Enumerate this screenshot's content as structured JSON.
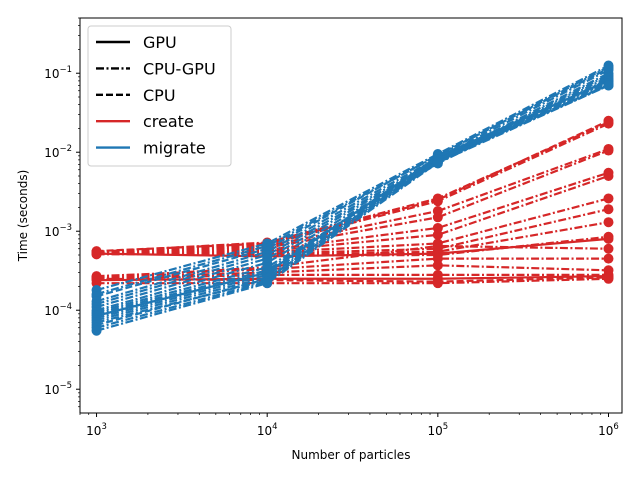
{
  "chart_data": {
    "type": "line",
    "title": "",
    "xlabel": "Number of particles",
    "ylabel": "Time (seconds)",
    "xscale": "log",
    "yscale": "log",
    "xlim": [
      800,
      1200000
    ],
    "ylim": [
      5e-06,
      0.5
    ],
    "grid": false,
    "legend_placement": "top-left",
    "x": [
      1000,
      10000,
      100000,
      1000000
    ],
    "x_ticks": [
      {
        "value": 1000,
        "base": "10",
        "exp": "3"
      },
      {
        "value": 10000,
        "base": "10",
        "exp": "4"
      },
      {
        "value": 100000,
        "base": "10",
        "exp": "5"
      },
      {
        "value": 1000000,
        "base": "10",
        "exp": "6"
      }
    ],
    "y_ticks": [
      {
        "value": 1e-05,
        "base": "10",
        "exp": "−5"
      },
      {
        "value": 0.0001,
        "base": "10",
        "exp": "−4"
      },
      {
        "value": 0.001,
        "base": "10",
        "exp": "−3"
      },
      {
        "value": 0.01,
        "base": "10",
        "exp": "−2"
      },
      {
        "value": 0.1,
        "base": "10",
        "exp": "−1"
      }
    ],
    "colors": {
      "create": "#d62728",
      "migrate": "#1f77b4"
    },
    "legend": {
      "styles": [
        {
          "label": "GPU",
          "dash": "solid"
        },
        {
          "label": "CPU-GPU",
          "dash": "dashdot"
        },
        {
          "label": "CPU",
          "dash": "dashed"
        }
      ],
      "colors": [
        {
          "label": "create",
          "color": "create"
        },
        {
          "label": "migrate",
          "color": "migrate"
        }
      ]
    },
    "series": [
      {
        "group": "create",
        "style": "dashdot",
        "values": [
          0.00055,
          0.00072,
          0.0026,
          0.024
        ]
      },
      {
        "group": "create",
        "style": "dashdot",
        "values": [
          0.00054,
          0.00068,
          0.0024,
          0.023
        ]
      },
      {
        "group": "create",
        "style": "dashed",
        "values": [
          0.00056,
          0.0007,
          0.0025,
          0.025
        ]
      },
      {
        "group": "create",
        "style": "dashdot",
        "values": [
          0.00053,
          0.00065,
          0.0018,
          0.011
        ]
      },
      {
        "group": "create",
        "style": "dashdot",
        "values": [
          0.00052,
          0.00062,
          0.0015,
          0.0105
        ]
      },
      {
        "group": "create",
        "style": "dashdot",
        "values": [
          0.00054,
          0.00058,
          0.0011,
          0.0055
        ]
      },
      {
        "group": "create",
        "style": "dashdot",
        "values": [
          0.00053,
          0.00056,
          0.0009,
          0.005
        ]
      },
      {
        "group": "create",
        "style": "dashdot",
        "values": [
          0.00052,
          0.00054,
          0.0007,
          0.0026
        ]
      },
      {
        "group": "create",
        "style": "dashdot",
        "values": [
          0.00051,
          0.00052,
          0.0006,
          0.0019
        ]
      },
      {
        "group": "create",
        "style": "dashdot",
        "values": [
          0.00055,
          0.0005,
          0.00055,
          0.0013
        ]
      },
      {
        "group": "create",
        "style": "dashdot",
        "values": [
          0.00053,
          0.00049,
          0.0005,
          0.00085
        ]
      },
      {
        "group": "create",
        "style": "solid",
        "values": [
          0.00052,
          0.00048,
          0.00052,
          0.0008
        ]
      },
      {
        "group": "create",
        "style": "dashdot",
        "values": [
          0.00026,
          0.00035,
          0.00065,
          0.0006
        ]
      },
      {
        "group": "create",
        "style": "dashdot",
        "values": [
          0.00027,
          0.00033,
          0.00045,
          0.00045
        ]
      },
      {
        "group": "create",
        "style": "dashdot",
        "values": [
          0.00026,
          0.0003,
          0.00037,
          0.00032
        ]
      },
      {
        "group": "create",
        "style": "dashdot",
        "values": [
          0.00025,
          0.00028,
          0.00028,
          0.00028
        ]
      },
      {
        "group": "create",
        "style": "solid",
        "values": [
          0.00024,
          0.00025,
          0.00025,
          0.00027
        ]
      },
      {
        "group": "create",
        "style": "dashed",
        "values": [
          0.00025,
          0.00024,
          0.00023,
          0.00026
        ]
      },
      {
        "group": "create",
        "style": "dashdot",
        "values": [
          0.00022,
          0.00022,
          0.00022,
          0.00025
        ]
      },
      {
        "group": "migrate",
        "style": "dashdot",
        "values": [
          0.00018,
          0.0007,
          0.0095,
          0.125
        ]
      },
      {
        "group": "migrate",
        "style": "dashdot",
        "values": [
          0.00016,
          0.00065,
          0.009,
          0.12
        ]
      },
      {
        "group": "migrate",
        "style": "dashed",
        "values": [
          0.00015,
          0.0006,
          0.0092,
          0.115
        ]
      },
      {
        "group": "migrate",
        "style": "dashdot",
        "values": [
          0.00013,
          0.00055,
          0.0085,
          0.11
        ]
      },
      {
        "group": "migrate",
        "style": "dashdot",
        "values": [
          0.00012,
          0.0005,
          0.008,
          0.1
        ]
      },
      {
        "group": "migrate",
        "style": "dashdot",
        "values": [
          0.00011,
          0.00045,
          0.0078,
          0.095
        ]
      },
      {
        "group": "migrate",
        "style": "dashdot",
        "values": [
          0.0001,
          0.0004,
          0.0075,
          0.09
        ]
      },
      {
        "group": "migrate",
        "style": "dashdot",
        "values": [
          9.5e-05,
          0.00035,
          0.0072,
          0.085
        ]
      },
      {
        "group": "migrate",
        "style": "dashdot",
        "values": [
          9e-05,
          0.00032,
          0.0083,
          0.082
        ]
      },
      {
        "group": "migrate",
        "style": "solid",
        "values": [
          8.5e-05,
          0.0003,
          0.0088,
          0.08
        ]
      },
      {
        "group": "migrate",
        "style": "dashdot",
        "values": [
          8e-05,
          0.00028,
          0.0082,
          0.078
        ]
      },
      {
        "group": "migrate",
        "style": "dashdot",
        "values": [
          7.5e-05,
          0.00026,
          0.0079,
          0.075
        ]
      },
      {
        "group": "migrate",
        "style": "dashdot",
        "values": [
          7e-05,
          0.00024,
          0.0077,
          0.072
        ]
      },
      {
        "group": "migrate",
        "style": "dashed",
        "values": [
          6.5e-05,
          0.00025,
          0.0081,
          0.071
        ]
      },
      {
        "group": "migrate",
        "style": "dashdot",
        "values": [
          6e-05,
          0.00023,
          0.0076,
          0.07
        ]
      },
      {
        "group": "migrate",
        "style": "dashdot",
        "values": [
          5.5e-05,
          0.00022,
          0.0074,
          0.07
        ]
      }
    ]
  }
}
